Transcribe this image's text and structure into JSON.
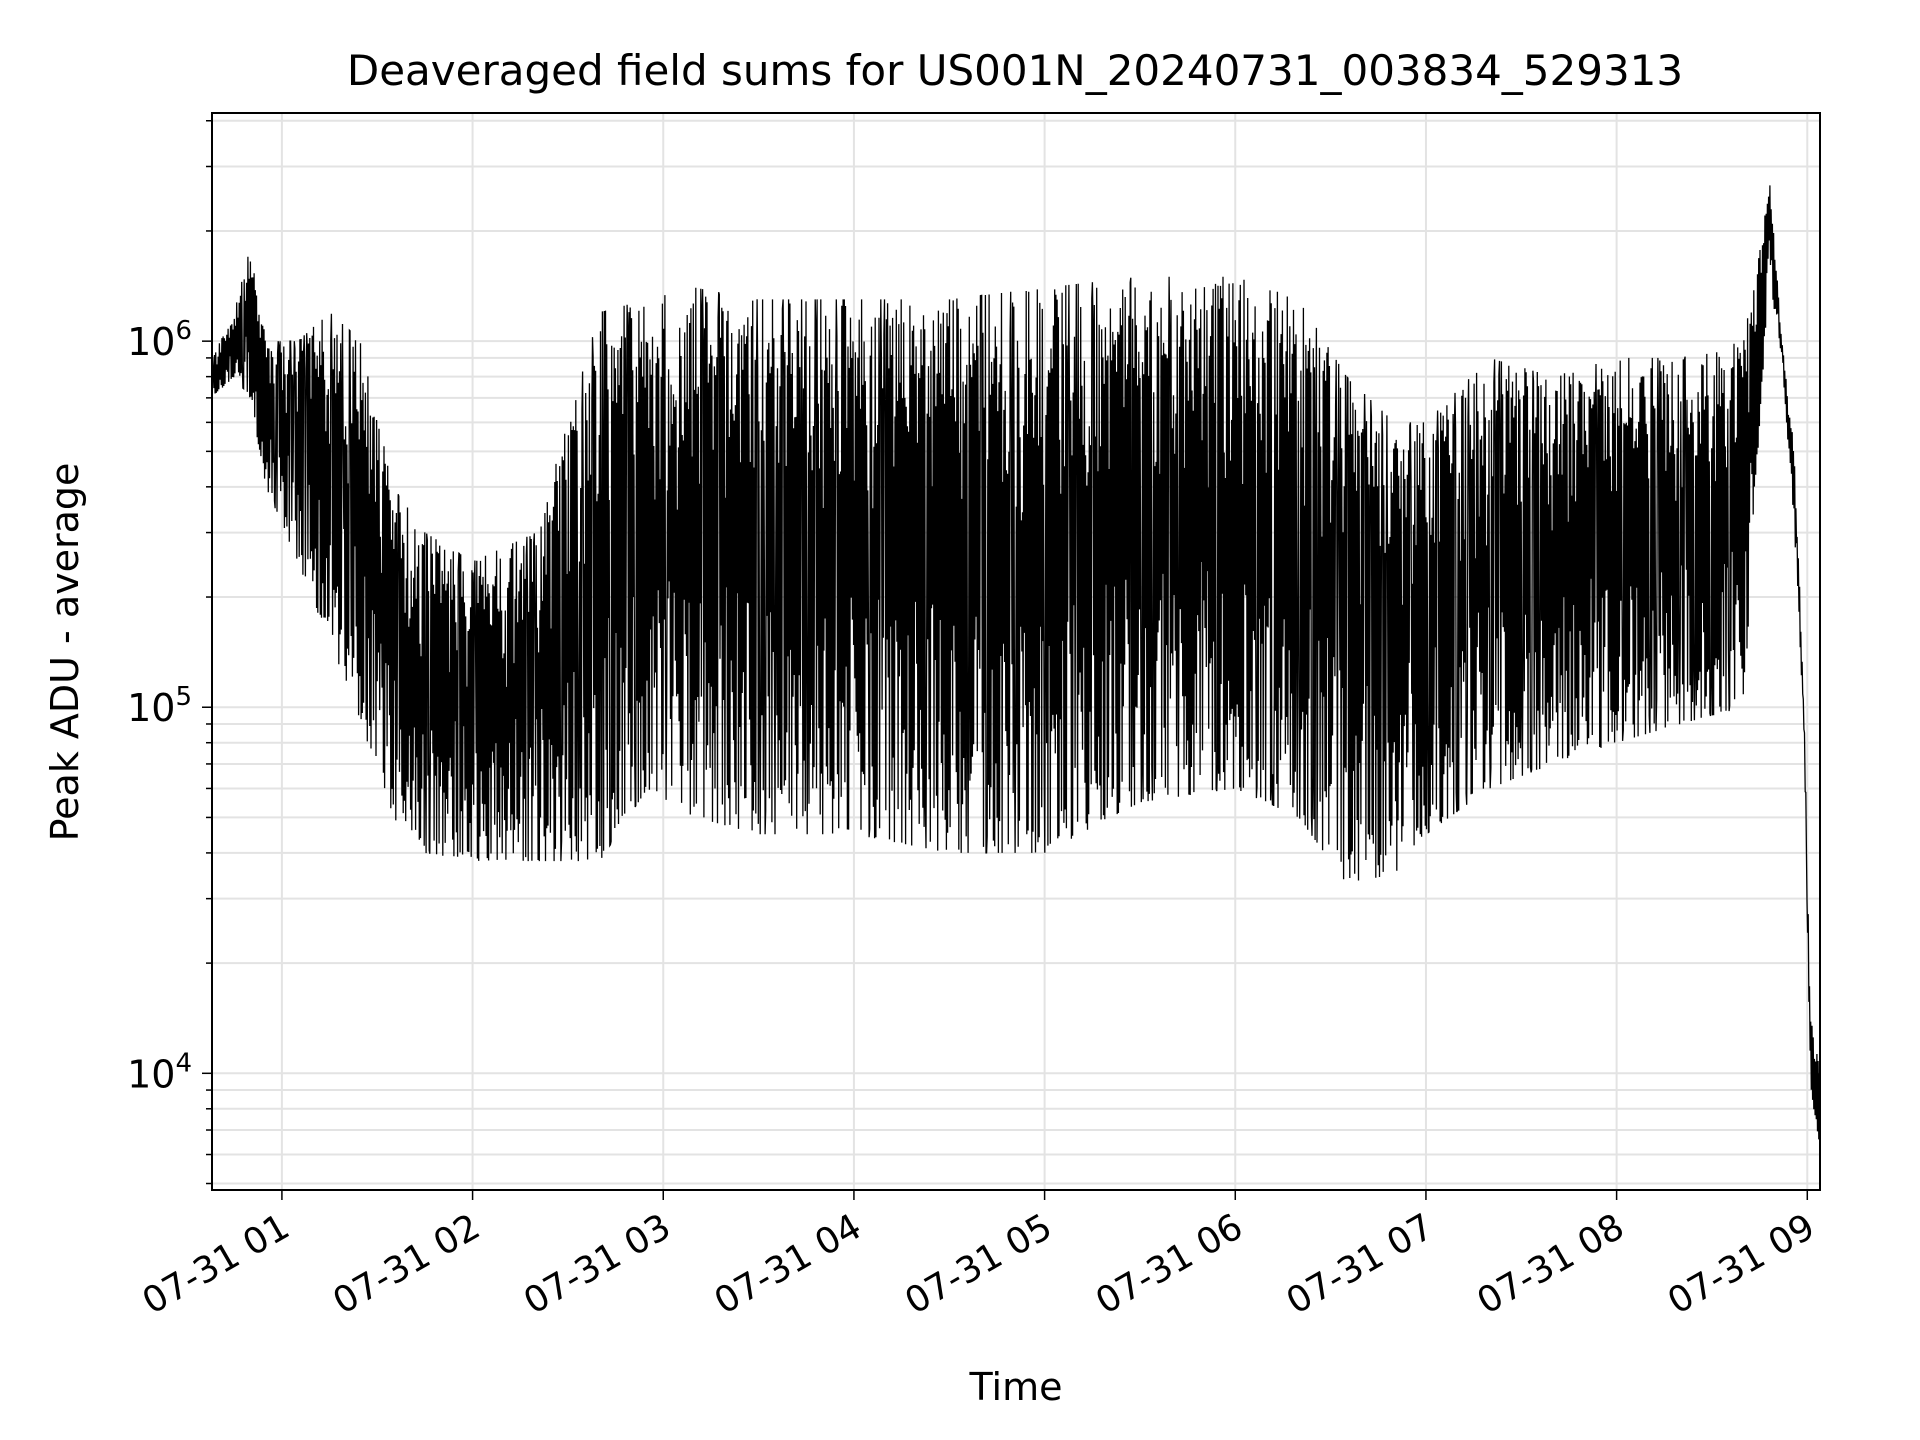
{
  "chart_data": {
    "type": "line",
    "title": "Deaveraged field sums for US001N_20240731_003834_529313",
    "xlabel": "Time",
    "ylabel": "Peak ADU - average",
    "yscale": "log",
    "xlim": [
      "2024-07-31 00:38",
      "2024-07-31 09:04"
    ],
    "ylim": [
      4800,
      4200000
    ],
    "grid": true,
    "legend": "none",
    "line_color": "#000000",
    "x_ticks": [
      "07-31 01",
      "07-31 02",
      "07-31 03",
      "07-31 04",
      "07-31 05",
      "07-31 06",
      "07-31 07",
      "07-31 08",
      "07-31 09"
    ],
    "y_ticks": [
      {
        "base": "10",
        "exp": "4",
        "value": 10000
      },
      {
        "base": "10",
        "exp": "5",
        "value": 100000
      },
      {
        "base": "10",
        "exp": "6",
        "value": 1000000
      }
    ],
    "series": [
      {
        "x": [
          "2024-07-31 00:38",
          "2024-07-31 00:45",
          "2024-07-31 00:50",
          "2024-07-31 00:55",
          "2024-07-31 01:05",
          "2024-07-31 01:15",
          "2024-07-31 01:25",
          "2024-07-31 01:35",
          "2024-07-31 01:45",
          "2024-07-31 02:00",
          "2024-07-31 02:20",
          "2024-07-31 02:40",
          "2024-07-31 02:55",
          "2024-07-31 03:10",
          "2024-07-31 03:30",
          "2024-07-31 04:00",
          "2024-07-31 04:30",
          "2024-07-31 05:00",
          "2024-07-31 05:30",
          "2024-07-31 06:00",
          "2024-07-31 06:20",
          "2024-07-31 06:35",
          "2024-07-31 06:50",
          "2024-07-31 07:00",
          "2024-07-31 07:20",
          "2024-07-31 07:40",
          "2024-07-31 08:00",
          "2024-07-31 08:20",
          "2024-07-31 08:40",
          "2024-07-31 08:45",
          "2024-07-31 08:48",
          "2024-07-31 08:52",
          "2024-07-31 08:56",
          "2024-07-31 08:59",
          "2024-07-31 09:01",
          "2024-07-31 09:04"
        ],
        "upper": [
          900000,
          1200000,
          1800000,
          1000000,
          1000000,
          1200000,
          1000000,
          400000,
          300000,
          250000,
          300000,
          1200000,
          1300000,
          1400000,
          1300000,
          1300000,
          1300000,
          1400000,
          1500000,
          1500000,
          1300000,
          800000,
          600000,
          600000,
          900000,
          800000,
          900000,
          900000,
          1000000,
          1800000,
          2900000,
          1000000,
          500000,
          100000,
          14000,
          11000
        ],
        "lower": [
          700000,
          800000,
          700000,
          400000,
          250000,
          150000,
          90000,
          50000,
          40000,
          38000,
          38000,
          38000,
          60000,
          50000,
          45000,
          45000,
          40000,
          40000,
          55000,
          60000,
          50000,
          33000,
          35000,
          45000,
          60000,
          70000,
          80000,
          90000,
          100000,
          600000,
          1500000,
          900000,
          300000,
          80000,
          9000,
          6300
        ]
      }
    ]
  }
}
